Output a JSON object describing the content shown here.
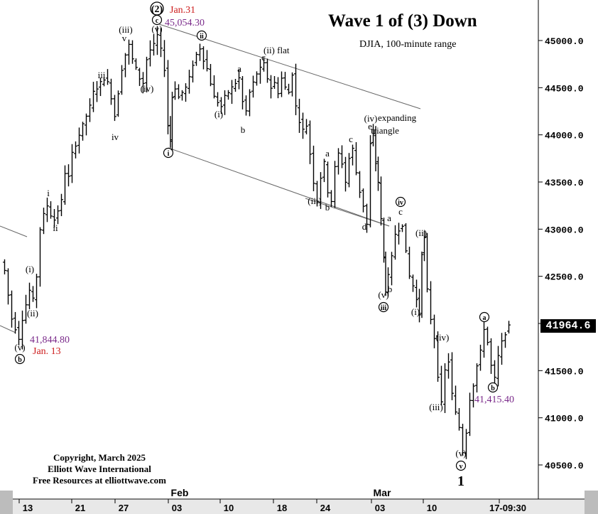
{
  "title": "Wave 1 of (3) Down",
  "subtitle": "DJIA, 100-minute range",
  "copyright": {
    "line1": "Copyright, March 2025",
    "line2": "Elliott Wave International",
    "line3": "Free Resources at elliottwave.com"
  },
  "current_price": "41964.6",
  "chart_data": {
    "type": "ohlc",
    "title": "Wave 1 of (3) Down",
    "subtitle": "DJIA, 100-minute range",
    "y_axis": {
      "side": "right",
      "ticks": [
        40500,
        41000,
        41500,
        42000,
        42500,
        43000,
        43500,
        44000,
        44500,
        45000
      ],
      "tick_labels": [
        "40500.0",
        "41000.0",
        "41500.0",
        "42000.0",
        "42500.0",
        "43000.0",
        "43500.0",
        "44000.0",
        "44500.0",
        "45000.0"
      ],
      "range": [
        40150,
        45600
      ]
    },
    "x_axis": {
      "tick_labels": [
        "13",
        "21",
        "27",
        "03",
        "10",
        "18",
        "24",
        "03",
        "10",
        "17-09:30"
      ],
      "month_labels": [
        "Feb",
        "Mar"
      ]
    },
    "price_path": [
      [
        0,
        42650
      ],
      [
        5,
        42560
      ],
      [
        10,
        42300
      ],
      [
        15,
        42050
      ],
      [
        20,
        41950
      ],
      [
        25,
        41845
      ],
      [
        30,
        42050
      ],
      [
        35,
        42200
      ],
      [
        40,
        42350
      ],
      [
        45,
        42250
      ],
      [
        50,
        42500
      ],
      [
        55,
        43000
      ],
      [
        60,
        43150
      ],
      [
        65,
        43250
      ],
      [
        70,
        43150
      ],
      [
        75,
        43100
      ],
      [
        80,
        43200
      ],
      [
        85,
        43300
      ],
      [
        90,
        43600
      ],
      [
        95,
        43550
      ],
      [
        100,
        43800
      ],
      [
        105,
        43900
      ],
      [
        110,
        44000
      ],
      [
        115,
        44100
      ],
      [
        120,
        44200
      ],
      [
        125,
        44300
      ],
      [
        130,
        44450
      ],
      [
        135,
        44500
      ],
      [
        140,
        44550
      ],
      [
        145,
        44600
      ],
      [
        150,
        44550
      ],
      [
        155,
        44400
      ],
      [
        160,
        44200
      ],
      [
        165,
        44450
      ],
      [
        170,
        44700
      ],
      [
        175,
        44850
      ],
      [
        180,
        44950
      ],
      [
        185,
        44800
      ],
      [
        190,
        44700
      ],
      [
        195,
        44600
      ],
      [
        200,
        44550
      ],
      [
        205,
        44800
      ],
      [
        210,
        44900
      ],
      [
        215,
        44950
      ],
      [
        220,
        45054
      ],
      [
        225,
        44900
      ],
      [
        230,
        44700
      ],
      [
        235,
        44100
      ],
      [
        237,
        43950
      ],
      [
        240,
        44400
      ],
      [
        245,
        44500
      ],
      [
        250,
        44400
      ],
      [
        255,
        44450
      ],
      [
        260,
        44500
      ],
      [
        265,
        44600
      ],
      [
        270,
        44750
      ],
      [
        275,
        44850
      ],
      [
        280,
        44920
      ],
      [
        285,
        44800
      ],
      [
        290,
        44700
      ],
      [
        295,
        44550
      ],
      [
        300,
        44400
      ],
      [
        305,
        44350
      ],
      [
        310,
        44300
      ],
      [
        315,
        44400
      ],
      [
        320,
        44450
      ],
      [
        325,
        44500
      ],
      [
        330,
        44550
      ],
      [
        335,
        44600
      ],
      [
        340,
        44350
      ],
      [
        345,
        44250
      ],
      [
        350,
        44450
      ],
      [
        355,
        44550
      ],
      [
        360,
        44650
      ],
      [
        365,
        44700
      ],
      [
        370,
        44750
      ],
      [
        375,
        44600
      ],
      [
        380,
        44500
      ],
      [
        385,
        44550
      ],
      [
        390,
        44450
      ],
      [
        395,
        44600
      ],
      [
        400,
        44500
      ],
      [
        405,
        44450
      ],
      [
        410,
        44650
      ],
      [
        415,
        44300
      ],
      [
        420,
        44150
      ],
      [
        425,
        44050
      ],
      [
        430,
        44100
      ],
      [
        435,
        43800
      ],
      [
        440,
        43500
      ],
      [
        445,
        43300
      ],
      [
        450,
        43550
      ],
      [
        455,
        43700
      ],
      [
        460,
        43400
      ],
      [
        465,
        43300
      ],
      [
        470,
        43650
      ],
      [
        475,
        43800
      ],
      [
        480,
        43700
      ],
      [
        485,
        43500
      ],
      [
        490,
        43750
      ],
      [
        495,
        43850
      ],
      [
        500,
        43600
      ],
      [
        505,
        43400
      ],
      [
        510,
        43250
      ],
      [
        515,
        43050
      ],
      [
        520,
        43900
      ],
      [
        523,
        44000
      ],
      [
        527,
        43700
      ],
      [
        530,
        43500
      ],
      [
        535,
        43100
      ],
      [
        538,
        42700
      ],
      [
        540,
        42350
      ],
      [
        545,
        42500
      ],
      [
        550,
        42700
      ],
      [
        555,
        42950
      ],
      [
        560,
        43000
      ],
      [
        565,
        43050
      ],
      [
        570,
        42750
      ],
      [
        575,
        42500
      ],
      [
        580,
        42400
      ],
      [
        585,
        42250
      ],
      [
        588,
        42100
      ],
      [
        592,
        42750
      ],
      [
        595,
        42900
      ],
      [
        600,
        42350
      ],
      [
        605,
        42050
      ],
      [
        610,
        41850
      ],
      [
        615,
        41450
      ],
      [
        620,
        41150
      ],
      [
        625,
        41500
      ],
      [
        630,
        41600
      ],
      [
        635,
        41250
      ],
      [
        640,
        41050
      ],
      [
        645,
        40900
      ],
      [
        650,
        40640
      ],
      [
        655,
        40850
      ],
      [
        660,
        41200
      ],
      [
        665,
        41350
      ],
      [
        670,
        41550
      ],
      [
        675,
        41700
      ],
      [
        680,
        41950
      ],
      [
        685,
        41800
      ],
      [
        690,
        41550
      ],
      [
        695,
        41415
      ],
      [
        700,
        41650
      ],
      [
        705,
        41800
      ],
      [
        710,
        41900
      ],
      [
        715,
        41965
      ]
    ],
    "annotations": [
      {
        "text": "41,844.80",
        "color": "#7a2a8a"
      },
      {
        "text": "Jan. 13",
        "color": "#cc1b1b"
      },
      {
        "text": "Jan.31",
        "color": "#cc1b1b"
      },
      {
        "text": "45,054.30",
        "color": "#7a2a8a"
      },
      {
        "text": "41,415.40",
        "color": "#7a2a8a"
      },
      {
        "text": "(2)",
        "color": "#000000"
      },
      {
        "text": "(i)",
        "color": "#000000"
      },
      {
        "text": "(ii)",
        "color": "#000000"
      },
      {
        "text": "(iii)",
        "color": "#000000"
      },
      {
        "text": "(iv)",
        "color": "#000000"
      },
      {
        "text": "(v)",
        "color": "#000000"
      },
      {
        "text": "(ii) flat",
        "color": "#000000"
      },
      {
        "text": "(iv)",
        "color": "#000000"
      },
      {
        "text": "expanding",
        "color": "#000000"
      },
      {
        "text": "triangle",
        "color": "#000000"
      },
      {
        "text": "1",
        "color": "#000000"
      },
      {
        "text": "i",
        "color": "#000000"
      },
      {
        "text": "ii",
        "color": "#000000"
      },
      {
        "text": "iii",
        "color": "#000000"
      },
      {
        "text": "iv",
        "color": "#000000"
      },
      {
        "text": "v",
        "color": "#000000"
      },
      {
        "text": "a",
        "color": "#000000"
      },
      {
        "text": "b",
        "color": "#000000"
      },
      {
        "text": "c",
        "color": "#000000"
      },
      {
        "text": "d",
        "color": "#000000"
      },
      {
        "text": "e",
        "color": "#000000"
      }
    ],
    "circled_labels": [
      "b",
      "c",
      "ii",
      "i",
      "iii",
      "iv",
      "v",
      "a"
    ],
    "trend_lines": 3,
    "grid": false,
    "colors": {
      "bars": "#000000",
      "background": "#ffffff",
      "price_red": "#cc1b1b",
      "price_purple": "#7a2a8a",
      "lines": "#555555"
    }
  }
}
